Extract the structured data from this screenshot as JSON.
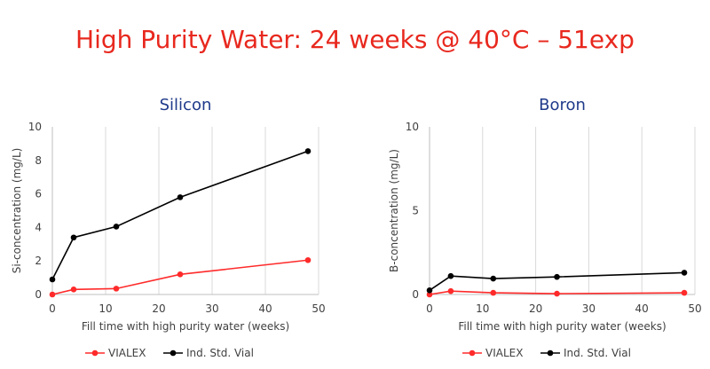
{
  "page": {
    "title": "High Purity Water: 24 weeks @ 40°C – 51exp"
  },
  "chart_data": [
    {
      "type": "line",
      "title": "Silicon",
      "xlabel": "Fill time with high purity water (weeks)",
      "ylabel": "Si-concentration (mg/L)",
      "xlim": [
        0,
        50
      ],
      "ylim": [
        0,
        10
      ],
      "xticks": [
        0,
        10,
        20,
        30,
        40,
        50
      ],
      "yticks": [
        0,
        2,
        4,
        6,
        8,
        10
      ],
      "grid": "vertical",
      "legend": "bottom",
      "series": [
        {
          "name": "VIALEX",
          "color": "#ff2a2a",
          "x": [
            0,
            4,
            12,
            24,
            48
          ],
          "y": [
            0.0,
            0.3,
            0.35,
            1.2,
            2.05
          ]
        },
        {
          "name": "Ind. Std. Vial",
          "color": "#000000",
          "x": [
            0,
            4,
            12,
            24,
            48
          ],
          "y": [
            0.9,
            3.4,
            4.05,
            5.8,
            8.55
          ]
        }
      ]
    },
    {
      "type": "line",
      "title": "Boron",
      "xlabel": "Fill time with high purity water (weeks)",
      "ylabel": "B-concentration (mg/L)",
      "xlim": [
        0,
        50
      ],
      "ylim": [
        0,
        10
      ],
      "xticks": [
        0,
        10,
        20,
        30,
        40,
        50
      ],
      "yticks": [
        0,
        5,
        10
      ],
      "grid": "vertical",
      "legend": "bottom",
      "series": [
        {
          "name": "VIALEX",
          "color": "#ff2a2a",
          "x": [
            0,
            4,
            12,
            24,
            48
          ],
          "y": [
            0.0,
            0.2,
            0.1,
            0.05,
            0.1
          ]
        },
        {
          "name": "Ind. Std. Vial",
          "color": "#000000",
          "x": [
            0,
            4,
            12,
            24,
            48
          ],
          "y": [
            0.25,
            1.1,
            0.95,
            1.05,
            1.3
          ]
        }
      ]
    }
  ]
}
